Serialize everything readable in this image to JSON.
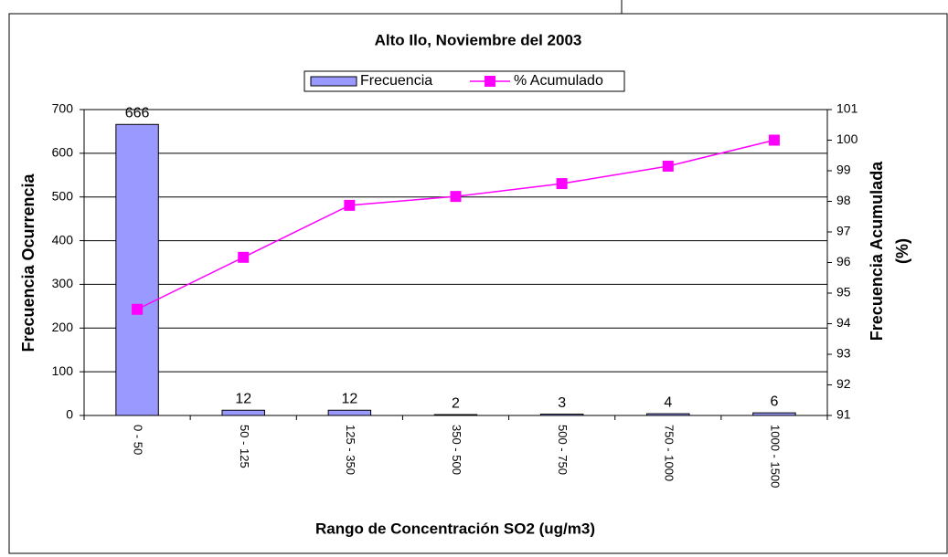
{
  "chart_data": {
    "type": "bar_line",
    "title": "Alto Ilo, Noviembre del 2003",
    "x_label": "Rango de Concentración SO2 (ug/m3)",
    "y_label": "Frecuencia Ocurrencia",
    "y2_label": [
      "Frecuencia Acumulada",
      "(%)"
    ],
    "categories": [
      "0 - 50",
      "50 - 125",
      "125 - 350",
      "350 - 500",
      "500 - 750",
      "750 - 1000",
      "1000 - 1500"
    ],
    "series": [
      {
        "name": "Frecuencia",
        "type": "bar",
        "color": "#9999ff",
        "values": [
          666,
          12,
          12,
          2,
          3,
          4,
          6
        ]
      },
      {
        "name": "% Acumulado",
        "type": "line",
        "color": "#ff00ff",
        "axis": "y2",
        "values": [
          94.47,
          96.17,
          97.87,
          98.16,
          98.58,
          99.15,
          100
        ]
      }
    ],
    "ylim": [
      0,
      700
    ],
    "yticks": [
      0,
      100,
      200,
      300,
      400,
      500,
      600,
      700
    ],
    "y2lim": [
      91,
      101
    ],
    "y2ticks": [
      91,
      92,
      93,
      94,
      95,
      96,
      97,
      98,
      99,
      100,
      101
    ],
    "grid": true,
    "legend": "top"
  }
}
